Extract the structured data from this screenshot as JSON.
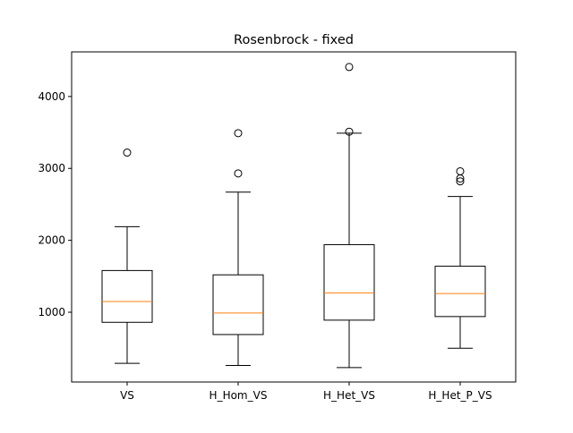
{
  "chart_data": {
    "type": "box",
    "title": "Rosenbrock - fixed",
    "xlabel": "",
    "ylabel": "",
    "ylim": [
      30,
      4620
    ],
    "yticks": [
      1000,
      2000,
      3000,
      4000
    ],
    "categories": [
      "VS",
      "H_Hom_VS",
      "H_Het_VS",
      "H_Het_P_VS"
    ],
    "boxes": [
      {
        "label": "VS",
        "whisker_low": 290,
        "q1": 860,
        "median": 1150,
        "q3": 1580,
        "whisker_high": 2190,
        "outliers": [
          3220
        ]
      },
      {
        "label": "H_Hom_VS",
        "whisker_low": 260,
        "q1": 690,
        "median": 990,
        "q3": 1520,
        "whisker_high": 2670,
        "outliers": [
          2930,
          3490
        ]
      },
      {
        "label": "H_Het_VS",
        "whisker_low": 230,
        "q1": 890,
        "median": 1270,
        "q3": 1940,
        "whisker_high": 3490,
        "outliers": [
          3510,
          4410
        ]
      },
      {
        "label": "H_Het_P_VS",
        "whisker_low": 500,
        "q1": 940,
        "median": 1260,
        "q3": 1640,
        "whisker_high": 2610,
        "outliers": [
          2820,
          2860,
          2960
        ]
      }
    ],
    "colors": {
      "box": "#000000",
      "median": "#ff7f0e",
      "background": "#ffffff"
    },
    "grid": false,
    "legend": "none"
  }
}
